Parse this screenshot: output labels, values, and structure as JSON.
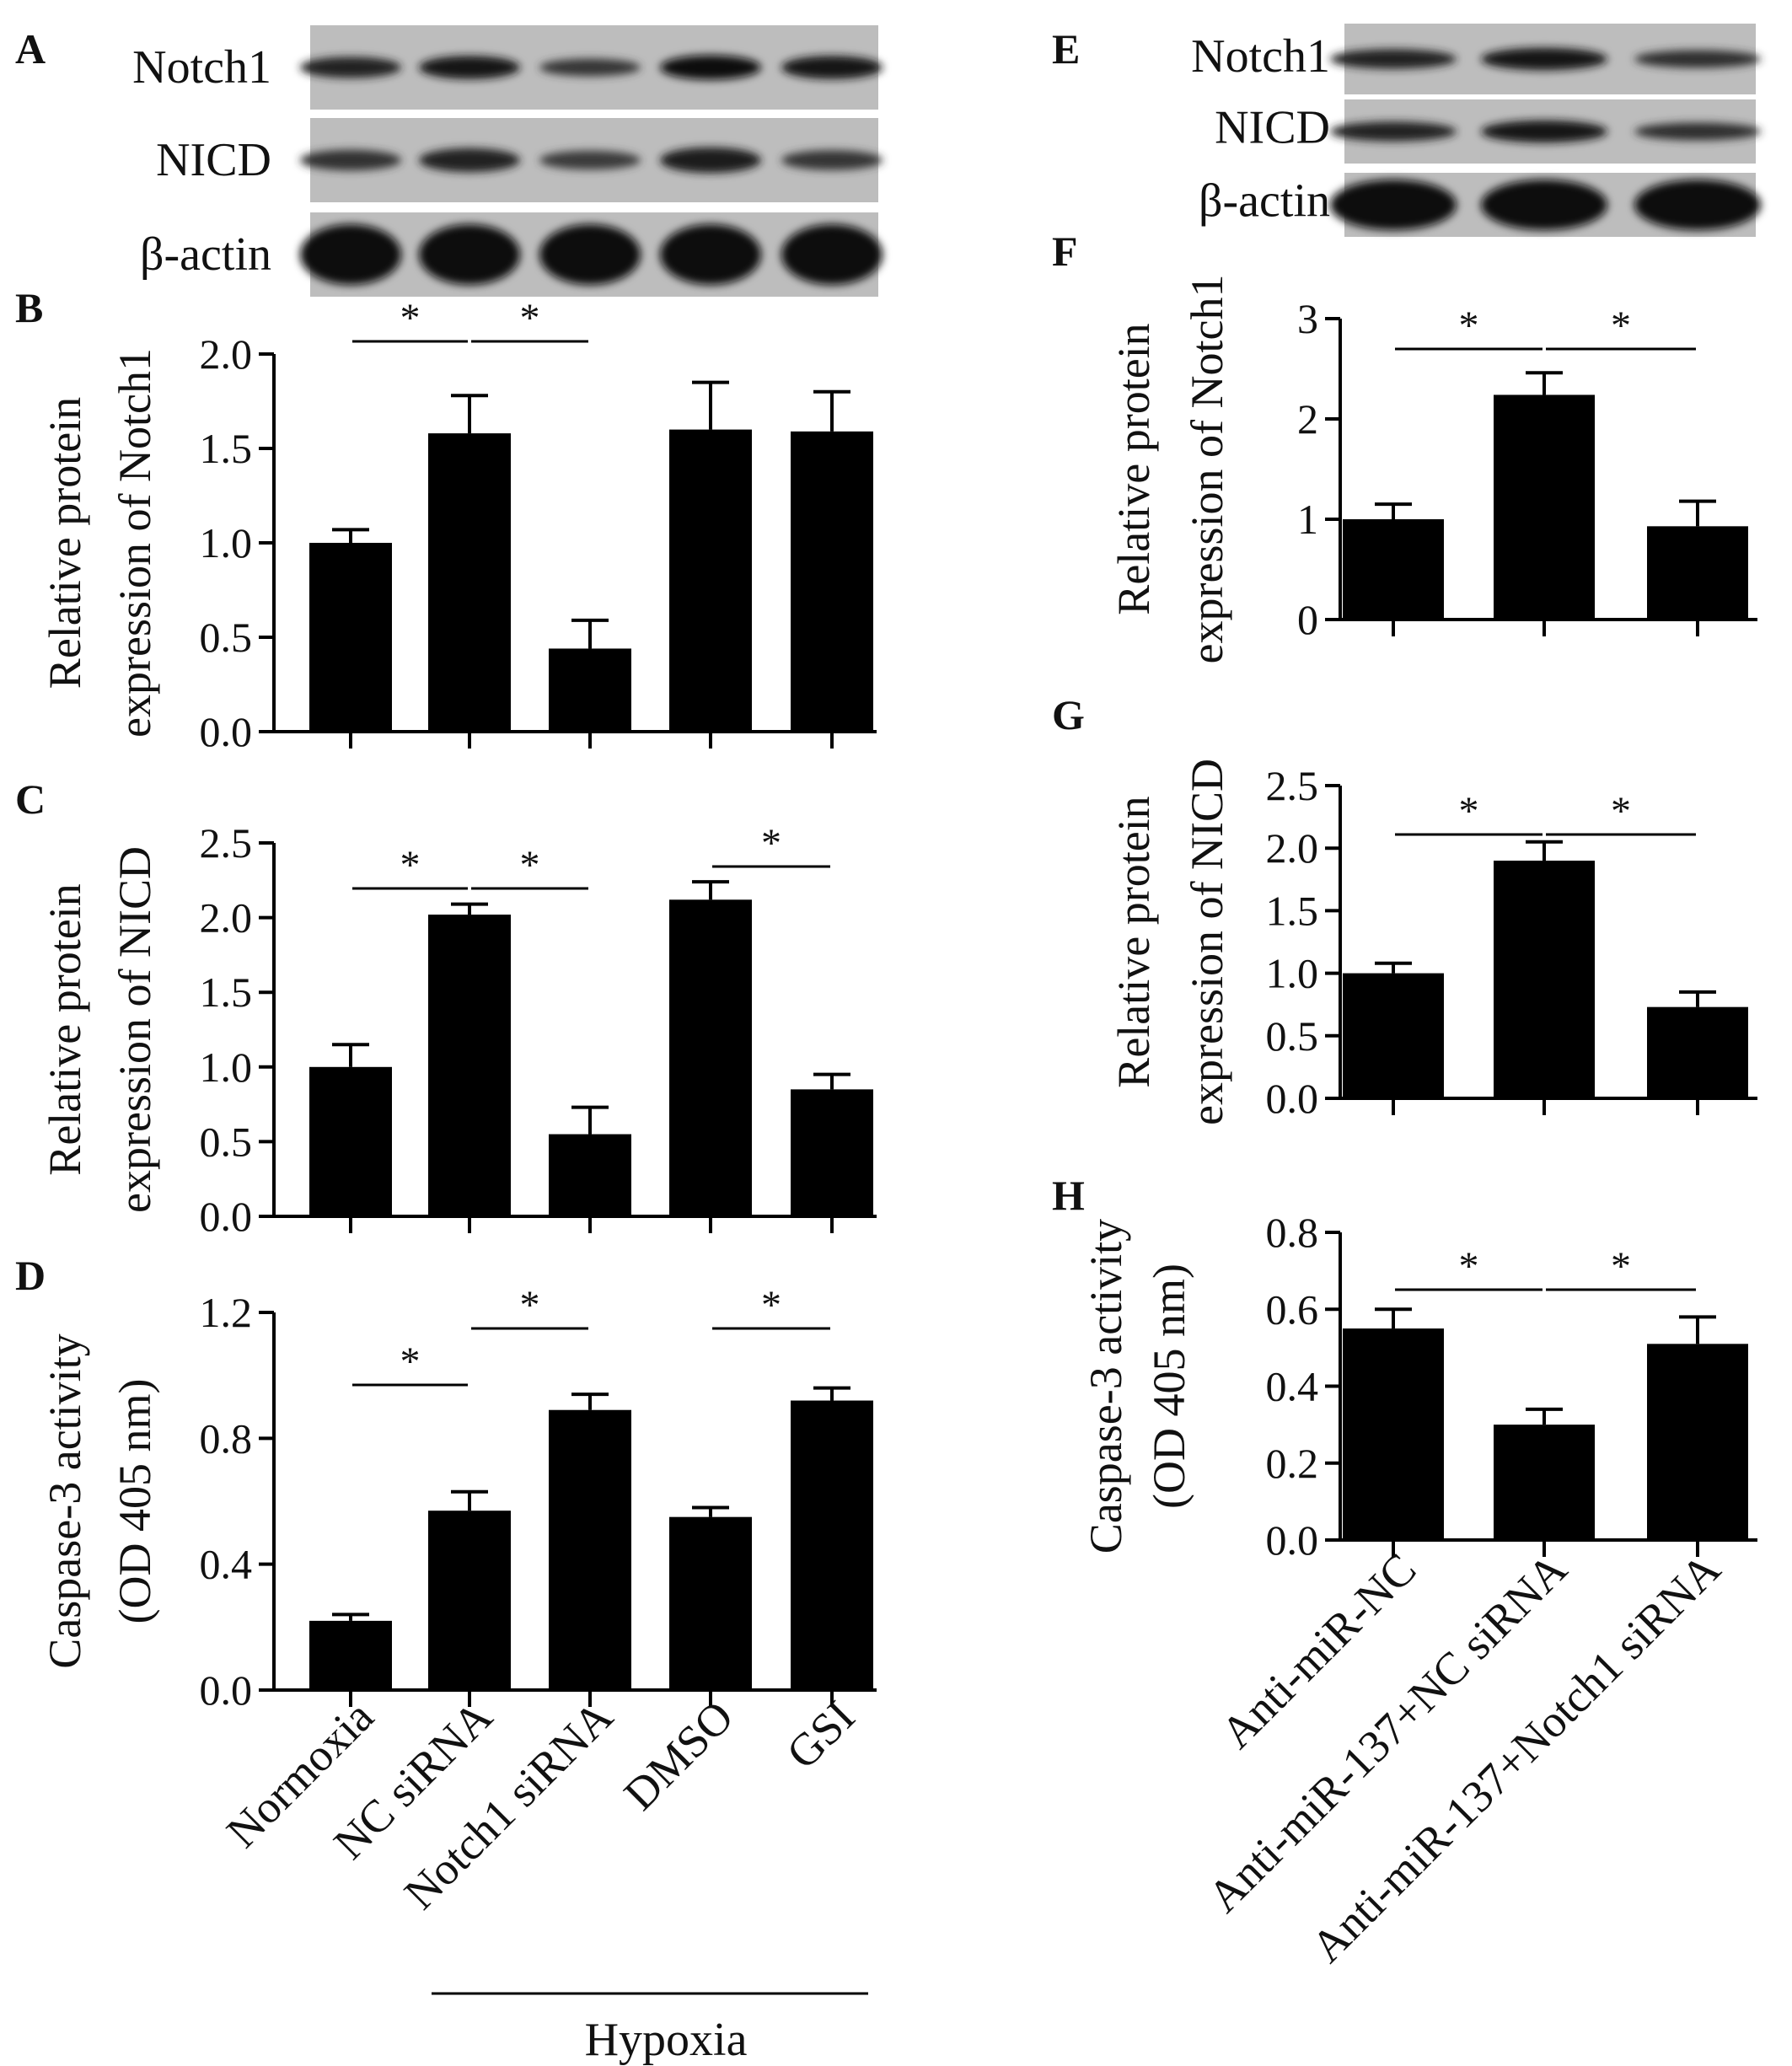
{
  "left_blots": {
    "panel_label": "A",
    "rows": [
      {
        "label": "Notch1",
        "intensity": [
          0.7,
          0.85,
          0.45,
          0.95,
          0.85
        ]
      },
      {
        "label": "NICD",
        "intensity": [
          0.5,
          0.7,
          0.4,
          0.8,
          0.45
        ]
      },
      {
        "label": "β-actin",
        "intensity": [
          1.0,
          1.0,
          1.0,
          1.0,
          1.0
        ]
      }
    ]
  },
  "right_blots": {
    "panel_label": "E",
    "rows": [
      {
        "label": "Notch1",
        "intensity": [
          0.7,
          0.9,
          0.55
        ]
      },
      {
        "label": "NICD",
        "intensity": [
          0.7,
          0.9,
          0.55
        ]
      },
      {
        "label": "β-actin",
        "intensity": [
          1.0,
          1.0,
          1.0
        ]
      }
    ]
  },
  "left_x_labels": [
    "Normoxia",
    "NC siRNA",
    "Notch1 siRNA",
    "DMSO",
    "GSI"
  ],
  "right_x_labels": [
    "Anti-miR-NC",
    "Anti-miR-137+NC siRNA",
    "Anti-miR-137+Notch1 siRNA"
  ],
  "group_label": "Hypoxia",
  "sig_marker": "*",
  "chart_data": [
    {
      "id": "B",
      "panel_label": "B",
      "type": "bar",
      "ylabel": [
        "Relative  protein",
        "expression of Notch1"
      ],
      "ylim": [
        0,
        2.0
      ],
      "yticks": [
        "0.0",
        "0.5",
        "1.0",
        "1.5",
        "2.0"
      ],
      "values": [
        1.0,
        1.58,
        0.44,
        1.6,
        1.59
      ],
      "errors": [
        0.07,
        0.2,
        0.15,
        0.25,
        0.21
      ],
      "significance": [
        [
          0,
          1
        ],
        [
          1,
          2
        ]
      ]
    },
    {
      "id": "C",
      "panel_label": "C",
      "type": "bar",
      "ylabel": [
        "Relative  protein",
        "expression of NICD"
      ],
      "ylim": [
        0,
        2.5
      ],
      "yticks": [
        "0.0",
        "0.5",
        "1.0",
        "1.5",
        "2.0",
        "2.5"
      ],
      "values": [
        1.0,
        2.02,
        0.55,
        2.12,
        0.85
      ],
      "errors": [
        0.15,
        0.07,
        0.18,
        0.12,
        0.1
      ],
      "significance": [
        [
          0,
          1
        ],
        [
          1,
          2
        ],
        [
          3,
          4
        ]
      ]
    },
    {
      "id": "D",
      "panel_label": "D",
      "type": "bar",
      "ylabel": [
        "Caspase-3 activity",
        "(OD 405 nm)"
      ],
      "ylim": [
        0,
        1.2
      ],
      "yticks": [
        "0.0",
        "0.4",
        "0.8",
        "1.2"
      ],
      "values": [
        0.22,
        0.57,
        0.89,
        0.55,
        0.92
      ],
      "errors": [
        0.02,
        0.06,
        0.05,
        0.03,
        0.04
      ],
      "significance": [
        [
          0,
          1
        ],
        [
          1,
          2
        ],
        [
          3,
          4
        ]
      ]
    },
    {
      "id": "F",
      "panel_label": "F",
      "type": "bar",
      "ylabel": [
        "Relative  protein",
        "expression of Notch1"
      ],
      "ylim": [
        0,
        3
      ],
      "yticks": [
        "0",
        "1",
        "2",
        "3"
      ],
      "values": [
        1.0,
        2.24,
        0.93
      ],
      "errors": [
        0.15,
        0.22,
        0.25
      ],
      "significance": [
        [
          0,
          1
        ],
        [
          1,
          2
        ]
      ]
    },
    {
      "id": "G",
      "panel_label": "G",
      "type": "bar",
      "ylabel": [
        "Relative  protein",
        "expression of NICD"
      ],
      "ylim": [
        0,
        2.5
      ],
      "yticks": [
        "0.0",
        "0.5",
        "1.0",
        "1.5",
        "2.0",
        "2.5"
      ],
      "values": [
        1.0,
        1.9,
        0.73
      ],
      "errors": [
        0.08,
        0.15,
        0.12
      ],
      "significance": [
        [
          0,
          1
        ],
        [
          1,
          2
        ]
      ]
    },
    {
      "id": "H",
      "panel_label": "H",
      "type": "bar",
      "ylabel": [
        "Caspase-3 activity",
        "(OD 405 nm)"
      ],
      "ylim": [
        0,
        0.8
      ],
      "yticks": [
        "0.0",
        "0.2",
        "0.4",
        "0.6",
        "0.8"
      ],
      "values": [
        0.55,
        0.3,
        0.51
      ],
      "errors": [
        0.05,
        0.04,
        0.07
      ],
      "significance": [
        [
          0,
          1
        ],
        [
          1,
          2
        ]
      ]
    }
  ]
}
